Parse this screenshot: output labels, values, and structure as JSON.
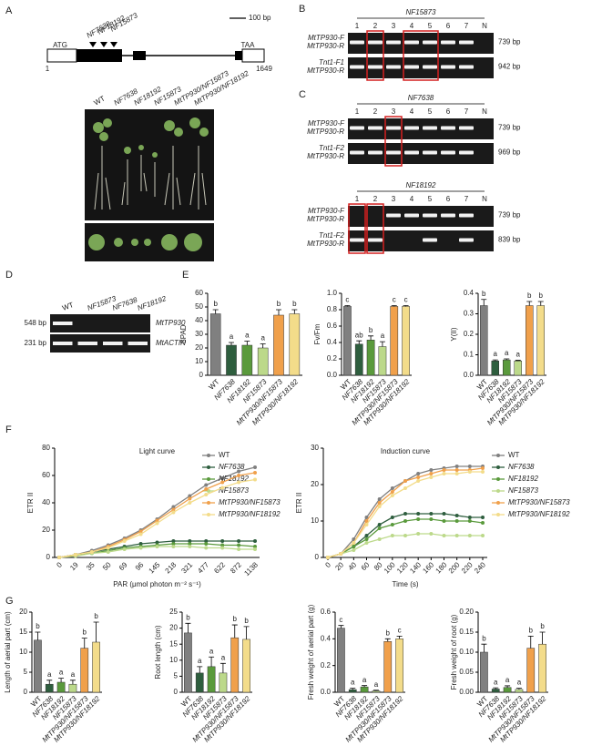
{
  "panel_labels": [
    "A",
    "B",
    "C",
    "D",
    "E",
    "F",
    "G"
  ],
  "panel_a": {
    "scale_bar": "100 bp",
    "start_codon": "ATG",
    "stop_codon": "TAA",
    "start": "1",
    "end": "1649",
    "insertions": [
      "NF7638",
      "NF18192",
      "NF15873"
    ],
    "plant_labels": [
      "WT",
      "NF7638",
      "NF18192",
      "NF15873",
      "MtTP930/NF15873",
      "MtTP930/NF18192"
    ]
  },
  "gels": {
    "b": {
      "title": "NF15873",
      "lanes": [
        "1",
        "2",
        "3",
        "4",
        "5",
        "6",
        "7",
        "N"
      ],
      "rows": [
        {
          "primers": [
            "MtTP930-F",
            "MtTP930-R"
          ],
          "size": "739 bp"
        },
        {
          "primers": [
            "Tnt1-F1",
            "MtTP930-R"
          ],
          "size": "942 bp"
        }
      ]
    },
    "c1": {
      "title": "NF7638",
      "lanes": [
        "1",
        "2",
        "3",
        "4",
        "5",
        "6",
        "7",
        "N"
      ],
      "rows": [
        {
          "primers": [
            "MtTP930-F",
            "MtTP930-R"
          ],
          "size": "739 bp"
        },
        {
          "primers": [
            "Tnt1-F2",
            "MtTP930-R"
          ],
          "size": "969 bp"
        }
      ]
    },
    "c2": {
      "title": "NF18192",
      "lanes": [
        "1",
        "2",
        "3",
        "4",
        "5",
        "6",
        "7",
        "N"
      ],
      "rows": [
        {
          "primers": [
            "MtTP930-F",
            "MtTP930-R"
          ],
          "size": "739 bp"
        },
        {
          "primers": [
            "Tnt1-F2",
            "MtTP930-R"
          ],
          "size": "839 bp"
        }
      ]
    },
    "d": {
      "lanes": [
        "WT",
        "NF15873",
        "NF7638",
        "NF18192"
      ],
      "rows": [
        {
          "size": "548 bp",
          "gene": "MtTP930"
        },
        {
          "size": "231 bp",
          "gene": "MtACTIN"
        }
      ]
    }
  },
  "chart_data": [
    {
      "type": "bar",
      "y_label": "SPAD",
      "categories": [
        "WT",
        "NF7638",
        "NF18192",
        "NF15873",
        "MtTP930/NF15873",
        "MtTP930/NF18192"
      ],
      "colors": [
        "#808080",
        "#2e5e3e",
        "#5a9a3c",
        "#bcd98a",
        "#f0a04b",
        "#f3dc8a"
      ],
      "values": [
        45,
        22,
        22,
        20,
        44,
        45
      ],
      "errors": [
        3,
        2,
        3,
        3,
        4,
        3
      ],
      "letters": [
        "b",
        "a",
        "a",
        "a",
        "b",
        "b"
      ],
      "ylim": [
        0,
        60
      ],
      "yticks": [
        0,
        10,
        20,
        30,
        40,
        50,
        60
      ]
    },
    {
      "type": "bar",
      "y_label": "Fv/Fm",
      "categories": [
        "WT",
        "NF7638",
        "NF18192",
        "NF15873",
        "MtTP930/NF15873",
        "MtTP930/NF18192"
      ],
      "colors": [
        "#808080",
        "#2e5e3e",
        "#5a9a3c",
        "#bcd98a",
        "#f0a04b",
        "#f3dc8a"
      ],
      "values": [
        0.84,
        0.38,
        0.43,
        0.35,
        0.84,
        0.84
      ],
      "errors": [
        0.01,
        0.04,
        0.05,
        0.06,
        0.01,
        0.01
      ],
      "letters": [
        "c",
        "ab",
        "b",
        "a",
        "c",
        "c"
      ],
      "ylim": [
        0,
        1
      ],
      "yticks": [
        {
          "value": 0,
          "label": "0.0"
        },
        0.2,
        0.4,
        0.6,
        0.8,
        {
          "value": 1,
          "label": "1.0"
        }
      ]
    },
    {
      "type": "bar",
      "y_label": "Y(II)",
      "categories": [
        "WT",
        "NF7638",
        "NF18192",
        "NF15873",
        "MtTP930/NF15873",
        "MtTP930/NF18192"
      ],
      "colors": [
        "#808080",
        "#2e5e3e",
        "#5a9a3c",
        "#bcd98a",
        "#f0a04b",
        "#f3dc8a"
      ],
      "values": [
        0.34,
        0.07,
        0.075,
        0.07,
        0.34,
        0.34
      ],
      "errors": [
        0.03,
        0.005,
        0.005,
        0.003,
        0.02,
        0.02
      ],
      "letters": [
        "b",
        "a",
        "a",
        "a",
        "b",
        "b"
      ],
      "ylim": [
        0,
        0.4
      ],
      "yticks": [
        {
          "value": 0,
          "label": "0.0"
        },
        0.1,
        0.2,
        0.3,
        0.4
      ]
    },
    {
      "type": "line",
      "title": "Light curve",
      "x_label": "PAR (μmol photon m⁻² s⁻¹)",
      "y_label": "ETR II",
      "categories": [
        "0",
        "19",
        "35",
        "50",
        "69",
        "96",
        "145",
        "218",
        "321",
        "477",
        "622",
        "872",
        "1138"
      ],
      "ylim": [
        0,
        80
      ],
      "yticks": [
        0,
        20,
        40,
        60,
        80
      ],
      "series": [
        {
          "name": "WT",
          "color": "#808080",
          "values": [
            0,
            2,
            5,
            9,
            14,
            20,
            28,
            37,
            45,
            53,
            58,
            63,
            66
          ]
        },
        {
          "name": "NF7638",
          "color": "#2e5e3e",
          "values": [
            0,
            2,
            4,
            6,
            8,
            10,
            11,
            12,
            12,
            12,
            12,
            12,
            12
          ]
        },
        {
          "name": "NF18192",
          "color": "#5a9a3c",
          "values": [
            0,
            2,
            3,
            5,
            7,
            8,
            9,
            10,
            10,
            10,
            9,
            9,
            8
          ]
        },
        {
          "name": "NF15873",
          "color": "#bcd98a",
          "values": [
            0,
            1,
            3,
            4,
            6,
            7,
            8,
            8,
            8,
            7,
            7,
            6,
            6
          ]
        },
        {
          "name": "MtTP930/NF15873",
          "color": "#f0a04b",
          "values": [
            0,
            2,
            4,
            8,
            13,
            19,
            27,
            35,
            43,
            50,
            55,
            60,
            62
          ]
        },
        {
          "name": "MtTP930/NF18192",
          "color": "#f3dc8a",
          "values": [
            0,
            2,
            4,
            7,
            12,
            17,
            25,
            33,
            40,
            46,
            51,
            55,
            57
          ]
        }
      ]
    },
    {
      "type": "line",
      "title": "Induction curve",
      "x_label": "Time (s)",
      "y_label": "ETR II",
      "x": [
        0,
        20,
        40,
        60,
        80,
        100,
        120,
        140,
        160,
        180,
        200,
        220,
        240
      ],
      "xlim": [
        0,
        240
      ],
      "xticks": [
        0,
        20,
        40,
        60,
        80,
        100,
        120,
        140,
        160,
        180,
        200,
        220,
        240
      ],
      "ylim": [
        0,
        30
      ],
      "yticks": [
        0,
        10,
        20,
        30
      ],
      "series": [
        {
          "name": "WT",
          "color": "#808080",
          "values": [
            0,
            1,
            5,
            11,
            16,
            19,
            21,
            23,
            24,
            24.5,
            25,
            25,
            25
          ]
        },
        {
          "name": "NF7638",
          "color": "#2e5e3e",
          "values": [
            0,
            1,
            3,
            6,
            9,
            11,
            12,
            12,
            12,
            12,
            11.5,
            11,
            11
          ]
        },
        {
          "name": "NF18192",
          "color": "#5a9a3c",
          "values": [
            0,
            1,
            3,
            5,
            8,
            9,
            10,
            10.5,
            10.5,
            10,
            10,
            10,
            9.5
          ]
        },
        {
          "name": "NF15873",
          "color": "#bcd98a",
          "values": [
            0,
            1,
            2,
            4,
            5,
            6,
            6,
            6.5,
            6.5,
            6,
            6,
            6,
            6
          ]
        },
        {
          "name": "MtTP930/NF15873",
          "color": "#f0a04b",
          "values": [
            0,
            1,
            4,
            10,
            15,
            18,
            21,
            22,
            23,
            24,
            24,
            24,
            24.5
          ]
        },
        {
          "name": "MtTP930/NF18192",
          "color": "#f3dc8a",
          "values": [
            0,
            1,
            4,
            9,
            14,
            17,
            19,
            21,
            22,
            23,
            23,
            23.5,
            23.5
          ]
        }
      ]
    },
    {
      "type": "bar",
      "y_label": "Length of aerial part  (cm)",
      "categories": [
        "WT",
        "NF7638",
        "NF18192",
        "NF15873",
        "MtTP930/NF15873",
        "MtTP930/NF18192"
      ],
      "colors": [
        "#808080",
        "#2e5e3e",
        "#5a9a3c",
        "#bcd98a",
        "#f0a04b",
        "#f3dc8a"
      ],
      "values": [
        13,
        2,
        2.5,
        2,
        11,
        12.5
      ],
      "errors": [
        2,
        1,
        1,
        1,
        2.5,
        5
      ],
      "letters": [
        "b",
        "a",
        "a",
        "a",
        "b",
        "b"
      ],
      "ylim": [
        0,
        20
      ],
      "yticks": [
        0,
        5,
        10,
        15,
        20
      ]
    },
    {
      "type": "bar",
      "y_label": "Root length (cm)",
      "categories": [
        "WT",
        "NF7638",
        "NF18192",
        "NF15873",
        "MtTP930/NF15873",
        "MtTP930/NF18192"
      ],
      "colors": [
        "#808080",
        "#2e5e3e",
        "#5a9a3c",
        "#bcd98a",
        "#f0a04b",
        "#f3dc8a"
      ],
      "values": [
        18.5,
        6,
        8,
        6,
        17,
        16.5
      ],
      "errors": [
        3,
        2,
        3,
        3,
        4,
        4
      ],
      "letters": [
        "b",
        "a",
        "a",
        "a",
        "b",
        "b"
      ],
      "ylim": [
        0,
        25
      ],
      "yticks": [
        0,
        5,
        10,
        15,
        20,
        25
      ]
    },
    {
      "type": "bar",
      "y_label": "Fresh weight of aerial part  (g)",
      "categories": [
        "WT",
        "NF7638",
        "NF18192",
        "NF15873",
        "MtTP930/NF15873",
        "MtTP930/NF18192"
      ],
      "colors": [
        "#808080",
        "#2e5e3e",
        "#5a9a3c",
        "#bcd98a",
        "#f0a04b",
        "#f3dc8a"
      ],
      "values": [
        0.48,
        0.02,
        0.04,
        0.01,
        0.38,
        0.4
      ],
      "errors": [
        0.02,
        0.01,
        0.01,
        0.005,
        0.02,
        0.02
      ],
      "letters": [
        "c",
        "a",
        "a",
        "a",
        "b",
        "c"
      ],
      "ylim": [
        0,
        0.6
      ],
      "yticks": [
        {
          "value": 0,
          "label": "0.0"
        },
        0.2,
        0.4,
        0.6
      ]
    },
    {
      "type": "bar",
      "y_label": "Fresh weight of root  (g)",
      "categories": [
        "WT",
        "NF7638",
        "NF18192",
        "NF15873",
        "MtTP930/NF15873",
        "MtTP930/NF18192"
      ],
      "colors": [
        "#808080",
        "#2e5e3e",
        "#5a9a3c",
        "#bcd98a",
        "#f0a04b",
        "#f3dc8a"
      ],
      "values": [
        0.1,
        0.008,
        0.012,
        0.007,
        0.11,
        0.12
      ],
      "errors": [
        0.02,
        0.003,
        0.004,
        0.003,
        0.03,
        0.03
      ],
      "letters": [
        "b",
        "a",
        "a",
        "a",
        "b",
        "b"
      ],
      "ylim": [
        0,
        0.2
      ],
      "yticks": [
        {
          "value": 0,
          "label": "0.00"
        },
        {
          "value": 0.05,
          "label": "0.05"
        },
        {
          "value": 0.1,
          "label": "0.10"
        },
        {
          "value": 0.15,
          "label": "0.15"
        },
        {
          "value": 0.2,
          "label": "0.20"
        }
      ]
    }
  ]
}
